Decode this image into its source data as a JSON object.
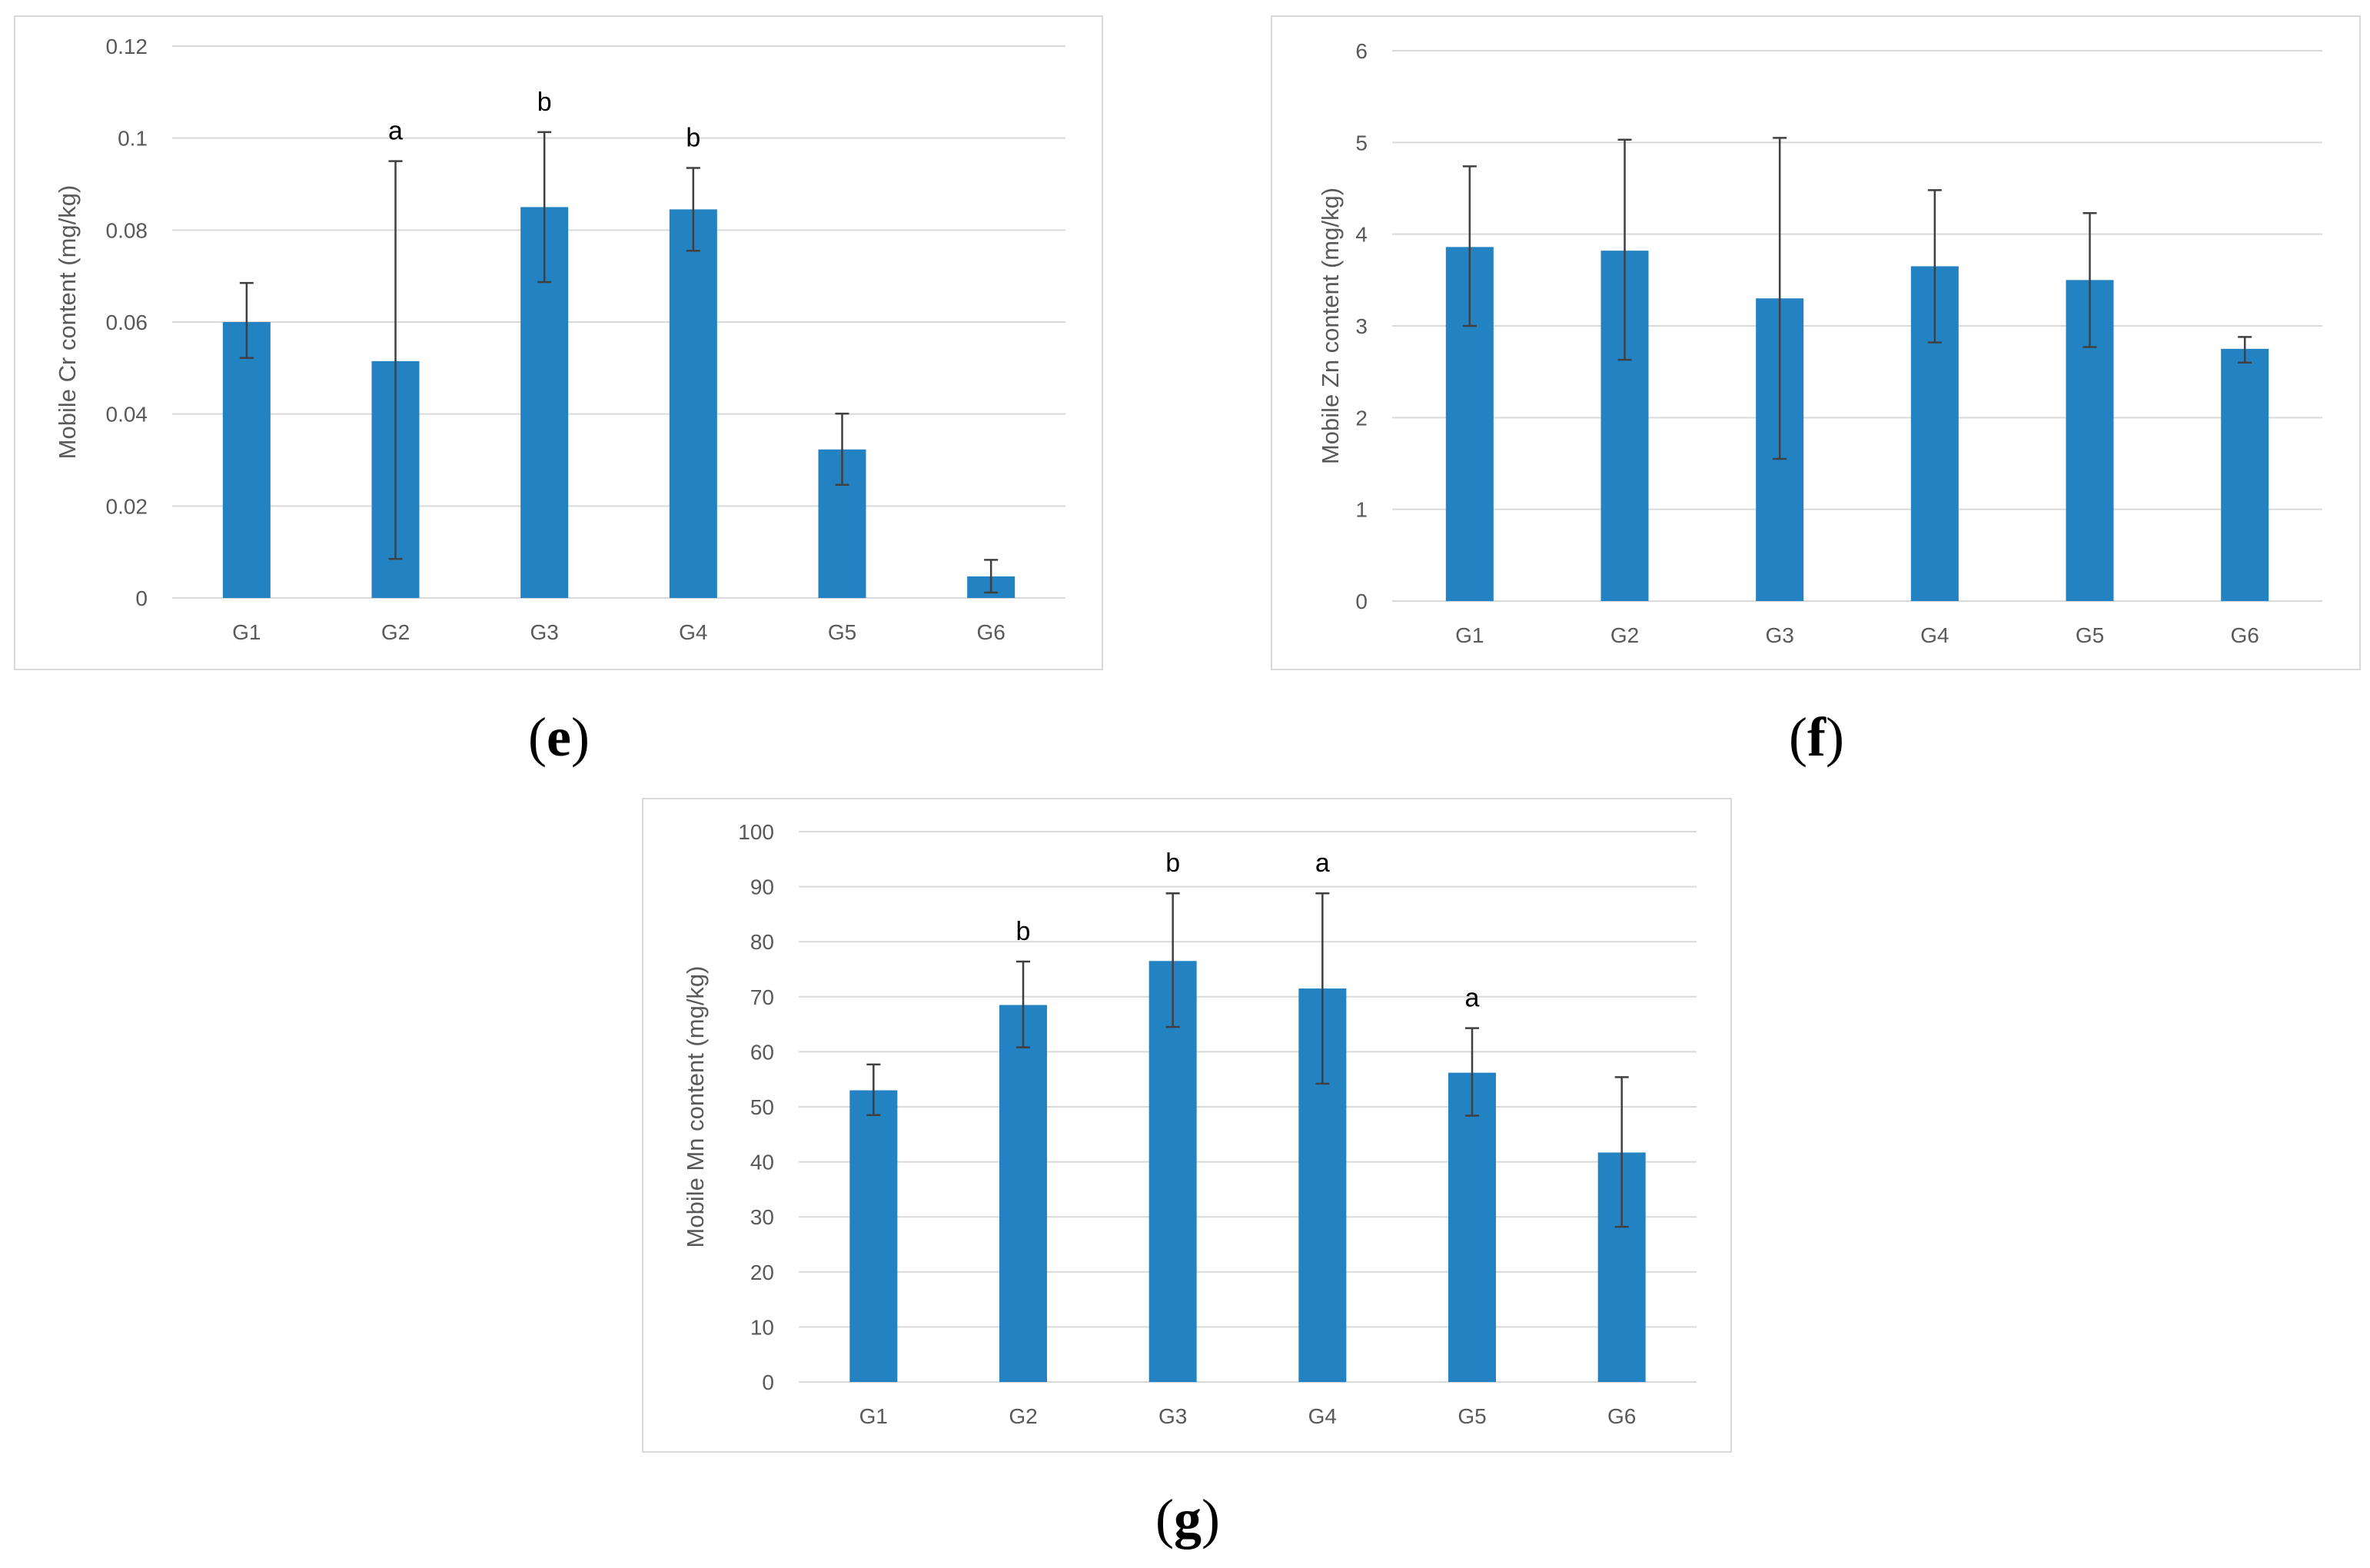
{
  "colors": {
    "bar": "#2382c2",
    "grid": "#d9d9d9",
    "error": "#404040",
    "text": "#595959"
  },
  "chart_data": [
    {
      "id": "e",
      "type": "bar",
      "caption": {
        "open": "(",
        "letter": "e",
        "close": ")"
      },
      "ylabel": "Mobile Cr content (mg/kg)",
      "categories": [
        "G1",
        "G2",
        "G3",
        "G4",
        "G5",
        "G6"
      ],
      "values": [
        0.06,
        0.0515,
        0.085,
        0.0845,
        0.0323,
        0.0047
      ],
      "error_upper": [
        0.0685,
        0.095,
        0.1013,
        0.0935,
        0.0401,
        0.0083
      ],
      "error_lower": [
        0.0522,
        0.0085,
        0.0687,
        0.0755,
        0.0246,
        0.0012
      ],
      "annotations": [
        "",
        "a",
        "b",
        "b",
        "",
        ""
      ],
      "ylim": [
        0,
        0.12
      ],
      "yticks": [
        0,
        0.02,
        0.04,
        0.06,
        0.08,
        0.1,
        0.12
      ],
      "ytick_labels": [
        "0",
        "0.02",
        "0.04",
        "0.06",
        "0.08",
        "0.1",
        "0.12"
      ],
      "grid": true
    },
    {
      "id": "f",
      "type": "bar",
      "caption": {
        "open": "(",
        "letter": "f",
        "close": ")"
      },
      "ylabel": "Mobile Zn content (mg/kg)",
      "categories": [
        "G1",
        "G2",
        "G3",
        "G4",
        "G5",
        "G6"
      ],
      "values": [
        3.86,
        3.82,
        3.3,
        3.65,
        3.5,
        2.75
      ],
      "error_upper": [
        4.74,
        5.03,
        5.05,
        4.48,
        4.23,
        2.88
      ],
      "error_lower": [
        3.0,
        2.63,
        1.55,
        2.82,
        2.77,
        2.6
      ],
      "annotations": [
        "",
        "",
        "",
        "",
        "",
        ""
      ],
      "ylim": [
        0,
        6
      ],
      "yticks": [
        0,
        1,
        2,
        3,
        4,
        5,
        6
      ],
      "ytick_labels": [
        "0",
        "1",
        "2",
        "3",
        "4",
        "5",
        "6"
      ],
      "grid": true
    },
    {
      "id": "g",
      "type": "bar",
      "caption": {
        "open": "(",
        "letter": "g",
        "close": ")"
      },
      "ylabel": "Mobile Mn content (mg/kg)",
      "categories": [
        "G1",
        "G2",
        "G3",
        "G4",
        "G5",
        "G6"
      ],
      "values": [
        53,
        68.5,
        76.5,
        71.5,
        56.2,
        41.7
      ],
      "error_upper": [
        57.7,
        76.4,
        88.8,
        88.8,
        64.3,
        55.4
      ],
      "error_lower": [
        48.5,
        60.8,
        64.5,
        54.2,
        48.4,
        28.2
      ],
      "annotations": [
        "",
        "b",
        "b",
        "a",
        "a",
        ""
      ],
      "ylim": [
        0,
        100
      ],
      "yticks": [
        0,
        10,
        20,
        30,
        40,
        50,
        60,
        70,
        80,
        90,
        100
      ],
      "ytick_labels": [
        "0",
        "10",
        "20",
        "30",
        "40",
        "50",
        "60",
        "70",
        "80",
        "90",
        "100"
      ],
      "grid": true
    }
  ]
}
